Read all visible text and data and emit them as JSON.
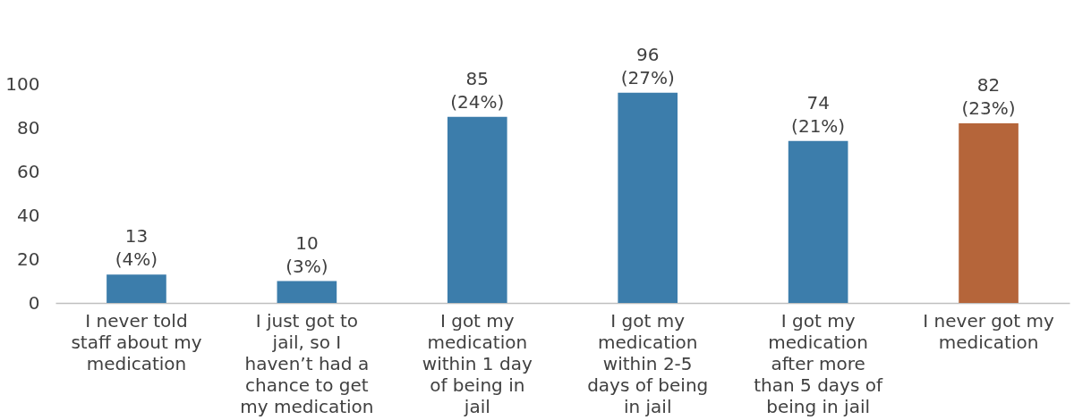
{
  "chart_data": {
    "type": "bar",
    "categories": [
      "I never told staff about my medication",
      "I just got to jail, so I haven’t had a chance to get my medication",
      "I got my medication within 1 day of being in jail",
      "I got my medication within 2-5 days of being in jail",
      "I got my medication after more than 5 days of being in jail",
      "I never got my medication"
    ],
    "values": [
      13,
      10,
      85,
      96,
      74,
      82
    ],
    "colors": [
      "#3c7dab",
      "#3c7dab",
      "#3c7dab",
      "#3c7dab",
      "#3c7dab",
      "#b5653a"
    ],
    "value_labels": [
      "13 (4%)",
      "10 (3%)",
      "85 (24%)",
      "96 (27%)",
      "74 (21%)",
      "82 (23%)"
    ],
    "ylim": [
      0,
      100
    ],
    "yticks": [
      0,
      20,
      40,
      60,
      80,
      100
    ],
    "grid": false
  }
}
